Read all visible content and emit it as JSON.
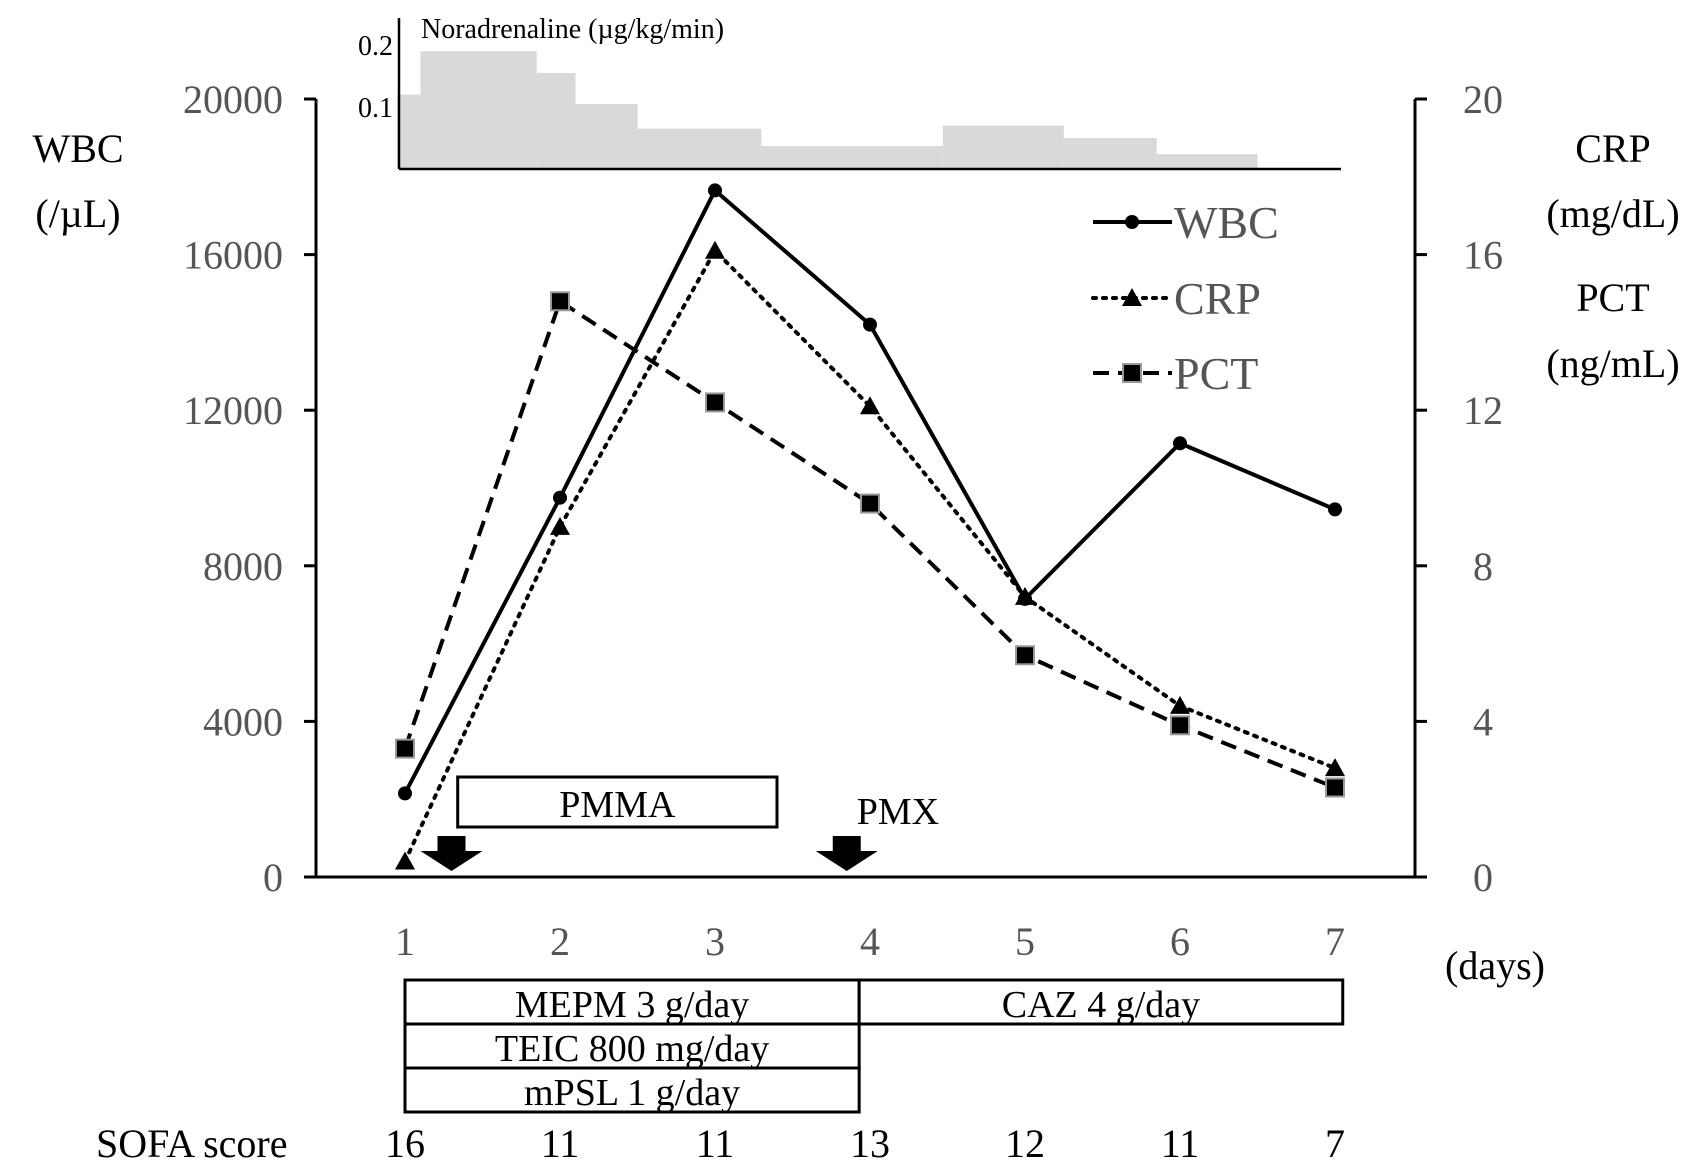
{
  "chart_data": {
    "type": "line",
    "x": [
      1,
      2,
      3,
      4,
      5,
      6,
      7
    ],
    "x_tick_labels": [
      "1",
      "2",
      "3",
      "4",
      "5",
      "6",
      "7"
    ],
    "x_unit": "(days)",
    "left_axis": {
      "label_lines": [
        "WBC",
        "(/µL)"
      ],
      "ylim": [
        0,
        20000
      ],
      "ticks": [
        "0",
        "4000",
        "8000",
        "12000",
        "16000",
        "20000"
      ],
      "tick_values": [
        0,
        4000,
        8000,
        12000,
        16000,
        20000
      ]
    },
    "right_axis": {
      "label_lines": [
        "CRP",
        "(mg/dL)",
        "PCT",
        "(ng/mL)"
      ],
      "ylim": [
        0,
        20
      ],
      "ticks": [
        "0",
        "4",
        "8",
        "12",
        "16",
        "20"
      ],
      "tick_values": [
        0,
        4,
        8,
        12,
        16,
        20
      ]
    },
    "series": [
      {
        "name": "WBC",
        "axis": "left",
        "line_style": "solid",
        "marker": "circle",
        "values": [
          2150,
          9750,
          17650,
          14200,
          7150,
          11150,
          9450
        ]
      },
      {
        "name": "CRP",
        "axis": "right",
        "line_style": "dotted",
        "marker": "triangle",
        "values": [
          0.4,
          9.0,
          16.1,
          12.1,
          7.2,
          4.4,
          2.8
        ]
      },
      {
        "name": "PCT",
        "axis": "right",
        "line_style": "dashed",
        "marker": "square",
        "values": [
          3.3,
          14.8,
          12.2,
          9.6,
          5.7,
          3.9,
          2.3
        ]
      }
    ],
    "legend": {
      "position": "top-right",
      "entries": [
        "WBC",
        "CRP",
        "PCT"
      ]
    },
    "noradrenaline": {
      "label": "Noradrenaline (µg/kg/min)",
      "type": "area-step",
      "ylim": [
        0,
        0.25
      ],
      "ticks": [
        "0.1",
        "0.2"
      ],
      "tick_values": [
        0.1,
        0.2
      ],
      "steps": [
        {
          "x_start": 0.95,
          "x_end": 1.1,
          "value": 0.12
        },
        {
          "x_start": 1.1,
          "x_end": 1.85,
          "value": 0.19
        },
        {
          "x_start": 1.85,
          "x_end": 2.1,
          "value": 0.155
        },
        {
          "x_start": 2.1,
          "x_end": 2.5,
          "value": 0.105
        },
        {
          "x_start": 2.5,
          "x_end": 3.3,
          "value": 0.065
        },
        {
          "x_start": 3.3,
          "x_end": 4.47,
          "value": 0.037
        },
        {
          "x_start": 4.47,
          "x_end": 5.25,
          "value": 0.07
        },
        {
          "x_start": 5.25,
          "x_end": 5.85,
          "value": 0.05
        },
        {
          "x_start": 5.85,
          "x_end": 6.5,
          "value": 0.024
        },
        {
          "x_start": 6.5,
          "x_end": 7.05,
          "value": 0.0
        }
      ]
    },
    "treatments_above": [
      {
        "label": "PMMA",
        "x_start": 1.34,
        "x_end": 3.4
      },
      {
        "label": "PMX",
        "x_start": 4.18,
        "x_end": 4.18
      }
    ],
    "arrows_at_x": [
      1.3,
      3.85
    ],
    "treatments_below": [
      {
        "label": "MEPM 3 g/day",
        "x_start": 1.0,
        "x_end": 3.93,
        "row": 0
      },
      {
        "label": "CAZ 4 g/day",
        "x_start": 3.93,
        "x_end": 7.05,
        "row": 0
      },
      {
        "label": "TEIC 800 mg/day",
        "x_start": 1.0,
        "x_end": 3.93,
        "row": 1
      },
      {
        "label": "mPSL 1 g/day",
        "x_start": 1.0,
        "x_end": 3.93,
        "row": 2
      }
    ],
    "sofa": {
      "label": "SOFA score",
      "values": [
        "16",
        "11",
        "11",
        "13",
        "12",
        "11",
        "7"
      ]
    },
    "grid": false
  }
}
